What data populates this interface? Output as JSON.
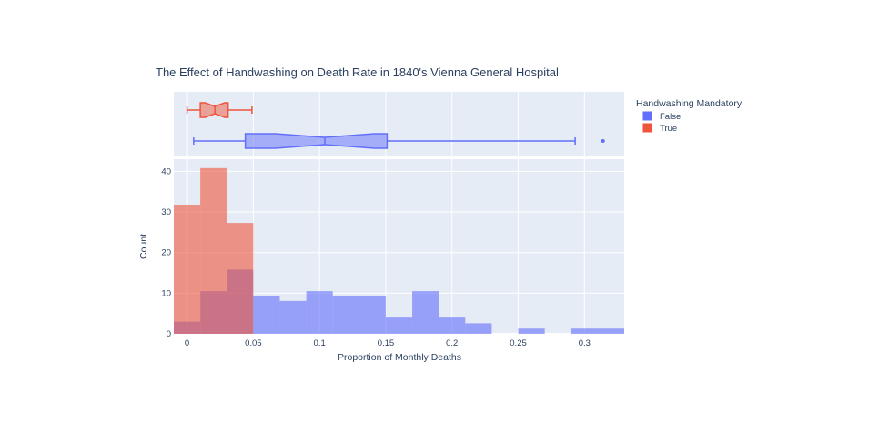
{
  "chart_data": {
    "type": "bar",
    "title": "The Effect of Handwashing on Death Rate in 1840's Vienna General Hospital",
    "xlabel": "Proportion of Monthly Deaths",
    "ylabel": "Count",
    "xlim": [
      -0.01,
      0.33
    ],
    "ylim": [
      0,
      43
    ],
    "x_ticks": [
      0,
      0.05,
      0.1,
      0.15,
      0.2,
      0.25,
      0.3
    ],
    "x_tick_labels": [
      "0",
      "0.05",
      "0.1",
      "0.15",
      "0.2",
      "0.25",
      "0.3"
    ],
    "y_ticks": [
      0,
      10,
      20,
      30,
      40
    ],
    "bin_width": 0.02,
    "legend": {
      "title": "Handwashing Mandatory",
      "placement": "top-right",
      "entries": [
        "False",
        "True"
      ]
    },
    "grid": true,
    "barmode": "overlay",
    "series": [
      {
        "name": "False",
        "color": "#636efa",
        "bin_starts": [
          -0.01,
          0.01,
          0.03,
          0.05,
          0.07,
          0.09,
          0.11,
          0.13,
          0.15,
          0.17,
          0.19,
          0.21,
          0.25,
          0.29,
          0.31
        ],
        "values": [
          3,
          10.5,
          15.8,
          9.2,
          8.1,
          10.5,
          9.2,
          9.2,
          4,
          10.5,
          4,
          2.6,
          1.3,
          1.3,
          1.3
        ],
        "box": {
          "min": 0.005,
          "q1": 0.044,
          "median": 0.104,
          "q3": 0.151,
          "max": 0.293,
          "outliers": [
            0.314
          ]
        }
      },
      {
        "name": "True",
        "color": "#ef553b",
        "bin_starts": [
          -0.01,
          0.01,
          0.03
        ],
        "values": [
          31.8,
          40.8,
          27.3
        ],
        "box": {
          "min": 0.0,
          "q1": 0.01,
          "median": 0.021,
          "q3": 0.031,
          "max": 0.049,
          "outliers": []
        }
      }
    ]
  }
}
